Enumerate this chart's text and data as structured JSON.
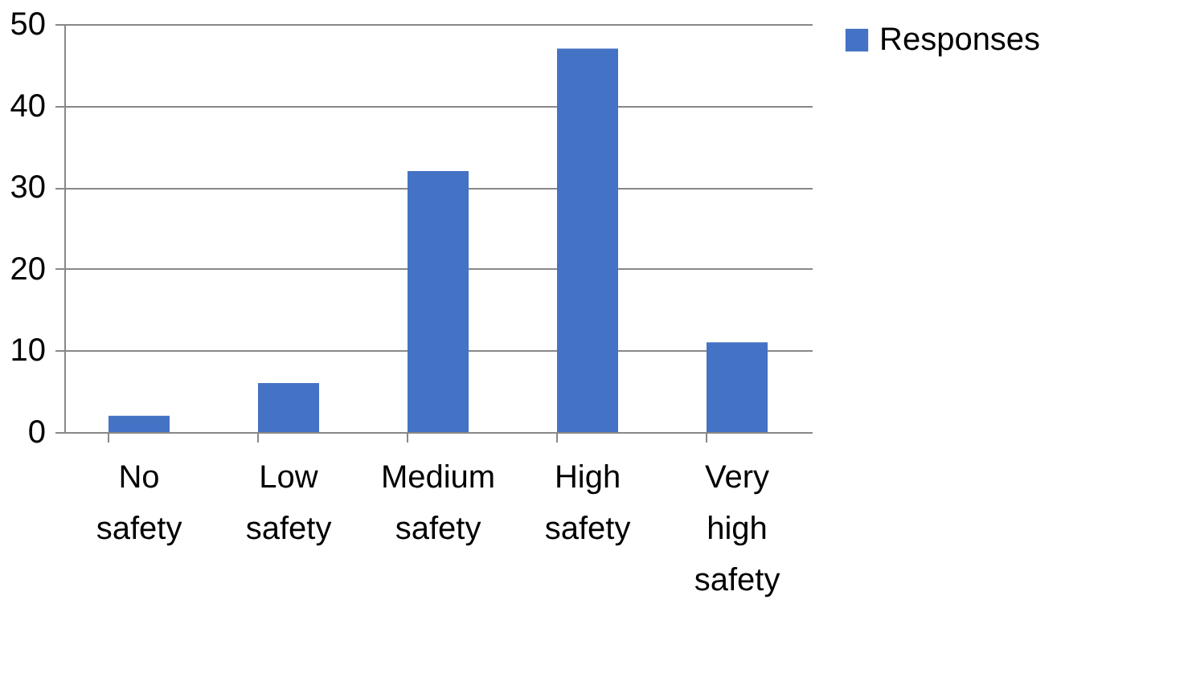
{
  "chart_data": {
    "type": "bar",
    "categories": [
      "No safety",
      "Low safety",
      "Medium safety",
      "High safety",
      "Very high safety"
    ],
    "series": [
      {
        "name": "Responses",
        "color": "#4472c4",
        "values": [
          2,
          6,
          32,
          47,
          11
        ]
      }
    ],
    "ylim": [
      0,
      50
    ],
    "yticks": [
      0,
      10,
      20,
      30,
      40,
      50
    ],
    "grid": "y",
    "legend": "right"
  }
}
